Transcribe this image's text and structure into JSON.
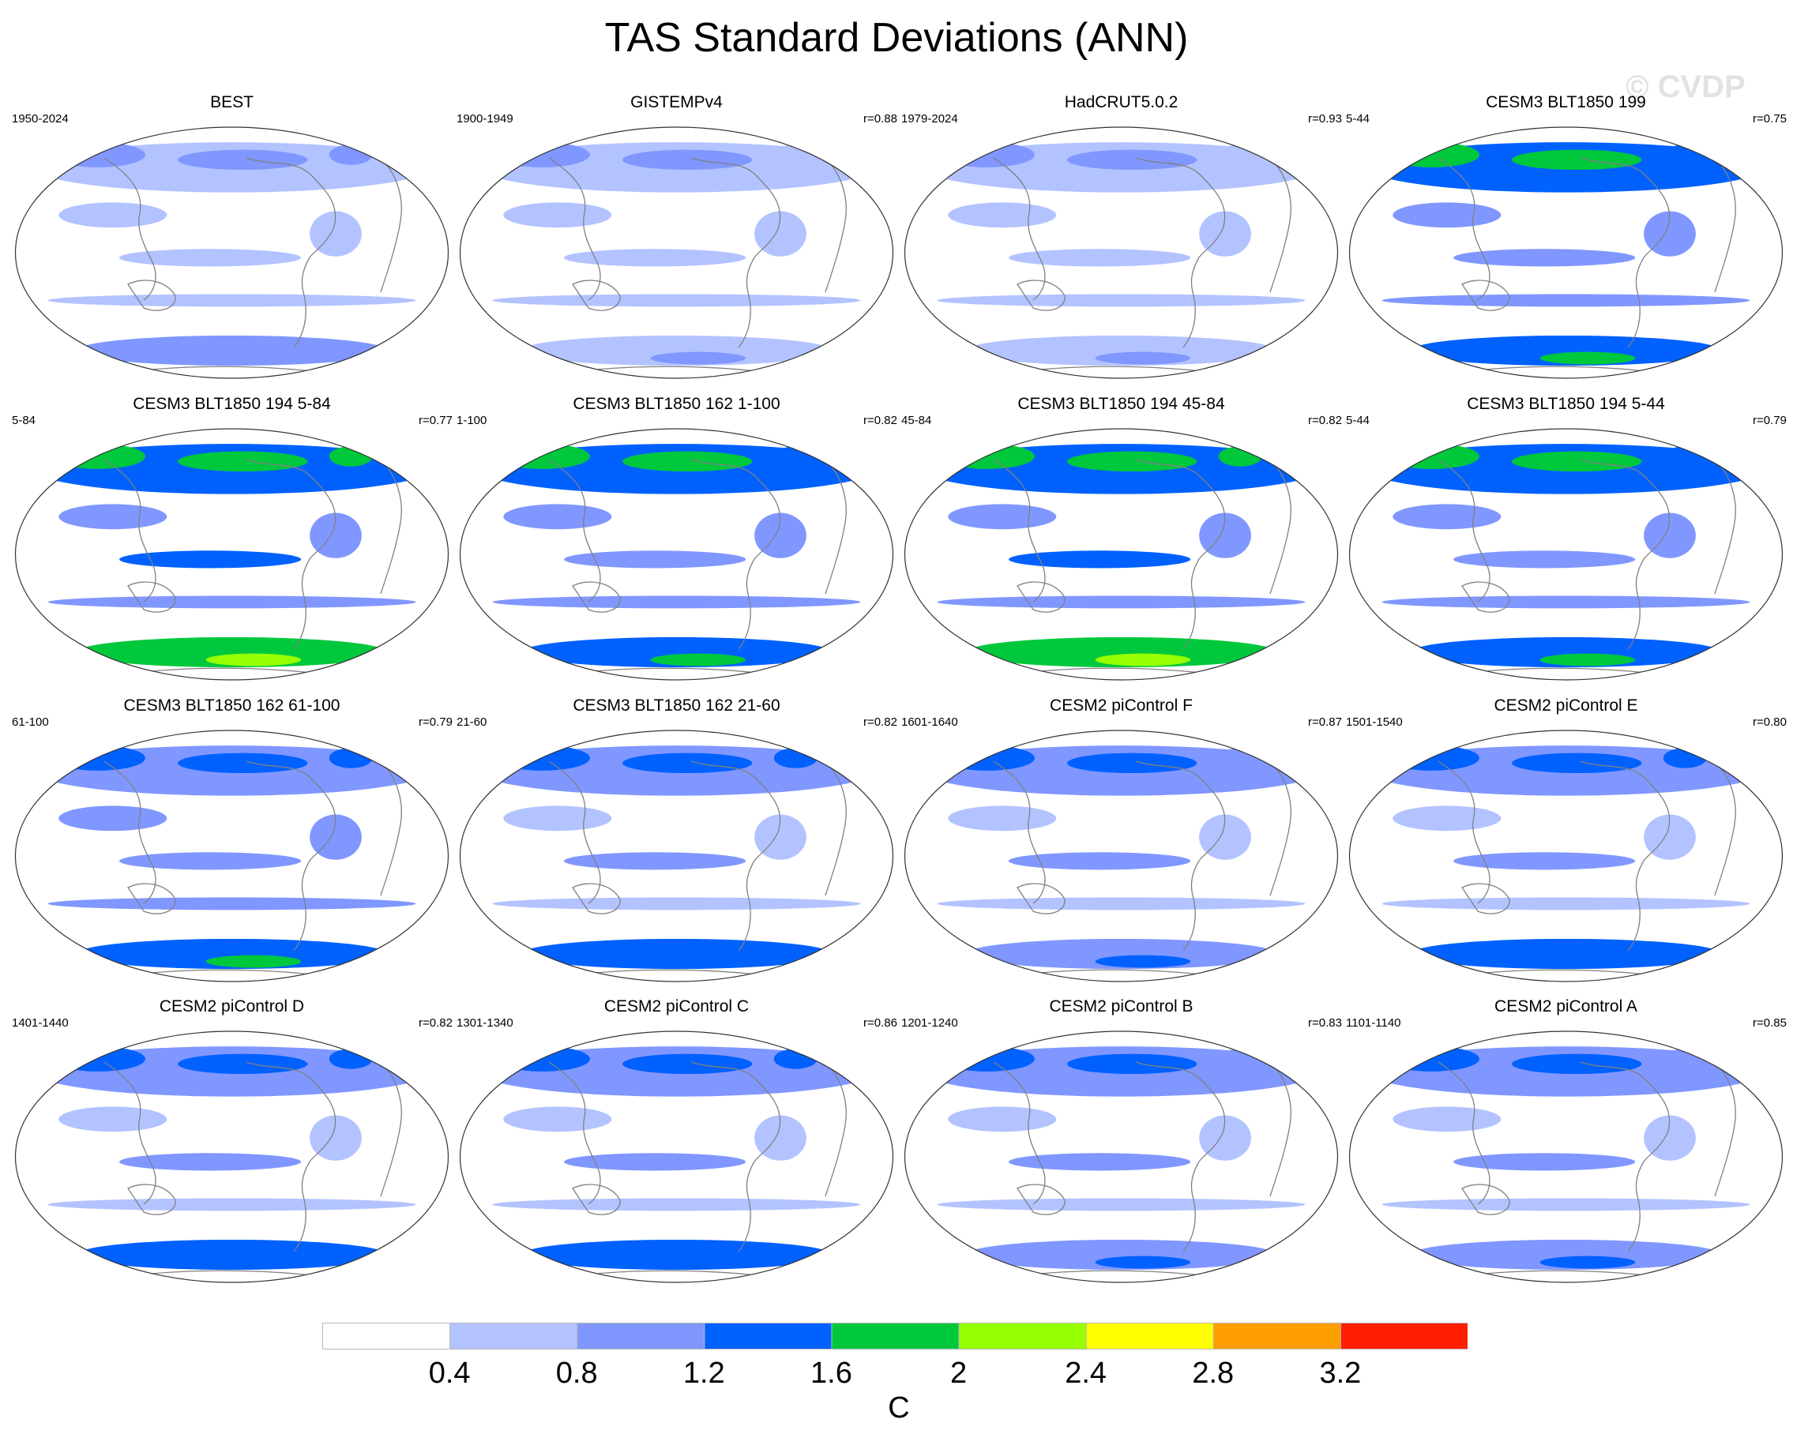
{
  "title": "TAS Standard Deviations (ANN)",
  "watermark": "© CVDP",
  "panels": [
    {
      "title": "BEST",
      "years": "1950-2024",
      "corr": "",
      "intensity": 0.6
    },
    {
      "title": "GISTEMPv4",
      "years": "1900-1949",
      "corr": "r=0.88",
      "intensity": 0.5
    },
    {
      "title": "HadCRUT5.0.2",
      "years": "1979-2024",
      "corr": "r=0.93",
      "intensity": 0.5
    },
    {
      "title": "CESM3 BLT1850 199",
      "years": "5-44",
      "corr": "r=0.75",
      "intensity": 1.2
    },
    {
      "title": "CESM3 BLT1850 194 5-84",
      "years": "5-84",
      "corr": "r=0.77",
      "intensity": 1.4
    },
    {
      "title": "CESM3 BLT1850 162 1-100",
      "years": "1-100",
      "corr": "r=0.82",
      "intensity": 1.3
    },
    {
      "title": "CESM3 BLT1850 194 45-84",
      "years": "45-84",
      "corr": "r=0.82",
      "intensity": 1.4
    },
    {
      "title": "CESM3 BLT1850 194 5-44",
      "years": "5-44",
      "corr": "r=0.79",
      "intensity": 1.3
    },
    {
      "title": "CESM3 BLT1850 162 61-100",
      "years": "61-100",
      "corr": "r=0.79",
      "intensity": 1.1
    },
    {
      "title": "CESM3 BLT1850 162 21-60",
      "years": "21-60",
      "corr": "r=0.82",
      "intensity": 1.0
    },
    {
      "title": "CESM2 piControl F",
      "years": "1601-1640",
      "corr": "r=0.87",
      "intensity": 0.9
    },
    {
      "title": "CESM2 piControl E",
      "years": "1501-1540",
      "corr": "r=0.80",
      "intensity": 1.0
    },
    {
      "title": "CESM2 piControl D",
      "years": "1401-1440",
      "corr": "r=0.82",
      "intensity": 1.0
    },
    {
      "title": "CESM2 piControl C",
      "years": "1301-1340",
      "corr": "r=0.86",
      "intensity": 1.0
    },
    {
      "title": "CESM2 piControl B",
      "years": "1201-1240",
      "corr": "r=0.83",
      "intensity": 0.9
    },
    {
      "title": "CESM2 piControl A",
      "years": "1101-1140",
      "corr": "r=0.85",
      "intensity": 0.9
    }
  ],
  "colorbar": {
    "colors": [
      "#ffffff",
      "#b3c3ff",
      "#8097ff",
      "#0061ff",
      "#00c83c",
      "#96ff00",
      "#ffff00",
      "#ff9e00",
      "#ff1e00"
    ],
    "labels": [
      "0.4",
      "0.8",
      "1.2",
      "1.6",
      "2",
      "2.4",
      "2.8",
      "3.2"
    ],
    "unit": "C"
  }
}
